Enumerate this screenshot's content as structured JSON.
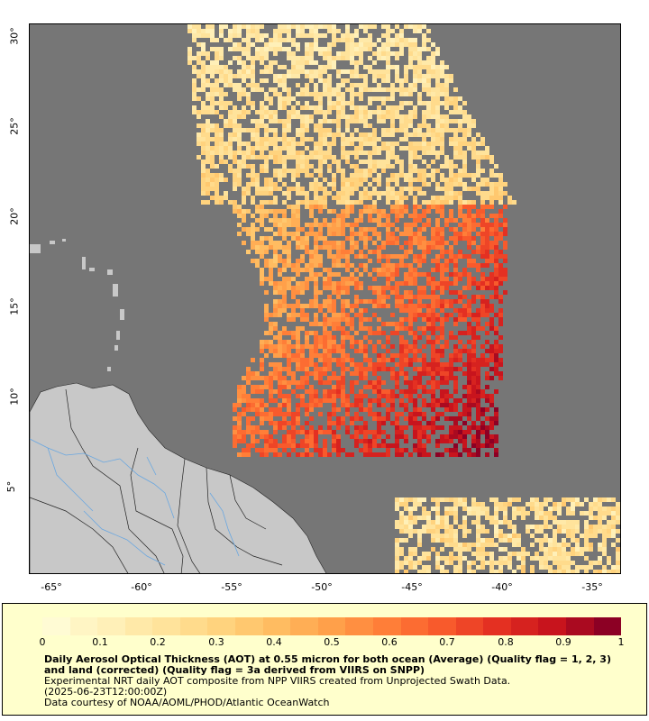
{
  "map": {
    "lon_labels": [
      "-65°",
      "-60°",
      "-55°",
      "-50°",
      "-45°",
      "-40°",
      "-35°"
    ],
    "lat_labels": [
      "30°",
      "25°",
      "20°",
      "15°",
      "10°",
      "5°"
    ],
    "ocean_color": "#767676",
    "land_color": "#c8c8c8",
    "river_color": "#6aa7e0"
  },
  "legend": {
    "ticks": [
      "0",
      "0.1",
      "0.2",
      "0.3",
      "0.4",
      "0.5",
      "0.6",
      "0.7",
      "0.8",
      "0.9",
      "1"
    ],
    "colors": [
      "#fffbd4",
      "#fff0b8",
      "#ffe39b",
      "#ffd37e",
      "#ffbc61",
      "#ffa04a",
      "#ff7e38",
      "#f85a2c",
      "#e43022",
      "#c8141d",
      "#8c0024"
    ],
    "title": "Daily Aerosol Optical Thickness (AOT) at 0.55 micron for both ocean (Average) (Quality flag = 1, 2, 3) and land (corrected) (Quality flag = 3a derived from VIIRS on SNPP)",
    "line1": "Experimental NRT daily AOT composite from NPP VIIRS created from Unprojected Swath Data.",
    "line2": "(2025-06-23T12:00:00Z)",
    "line3": "Data courtesy of NOAA/AOML/PHOD/Atlantic OceanWatch"
  }
}
